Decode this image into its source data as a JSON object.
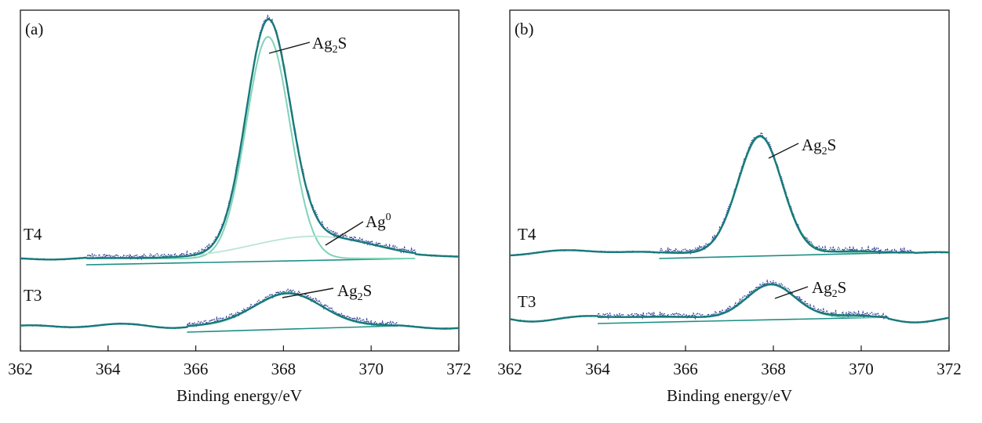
{
  "chart_data": [
    {
      "type": "line",
      "panel_label": "(a)",
      "xlabel": "Binding energy/eV",
      "xlim": [
        362,
        372
      ],
      "xticks": [
        "362",
        "364",
        "366",
        "368",
        "370",
        "372"
      ],
      "yaxis": "offset intensity (no scale shown)",
      "traces": [
        {
          "label": "T4",
          "components": [
            {
              "name": "Ag2S",
              "type": "peak",
              "center": 367.65,
              "width": 0.5,
              "height": 1.0
            },
            {
              "name": "Ag0",
              "type": "peak",
              "center": 368.7,
              "width": 1.4,
              "height": 0.1
            }
          ],
          "annotations": [
            {
              "text": "Ag",
              "sub": "2",
              "rest": "S",
              "x": 367.7
            },
            {
              "text": "Ag",
              "sup": "0",
              "rest": "",
              "x": 369.0
            }
          ]
        },
        {
          "label": "T3",
          "components": [
            {
              "name": "Ag2S",
              "type": "peak",
              "center": 368.1,
              "width": 0.75,
              "height": 0.15
            }
          ],
          "annotations": [
            {
              "text": "Ag",
              "sub": "2",
              "rest": "S",
              "x": 368.3
            }
          ]
        }
      ]
    },
    {
      "type": "line",
      "panel_label": "(b)",
      "xlabel": "Binding energy/eV",
      "xlim": [
        362,
        372
      ],
      "xticks": [
        "362",
        "364",
        "366",
        "368",
        "370",
        "372"
      ],
      "yaxis": "offset intensity (no scale shown)",
      "traces": [
        {
          "label": "T4",
          "components": [
            {
              "name": "Ag2S",
              "type": "peak",
              "center": 367.7,
              "width": 0.5,
              "height": 0.52
            }
          ],
          "annotations": [
            {
              "text": "Ag",
              "sub": "2",
              "rest": "S",
              "x": 367.8
            }
          ]
        },
        {
          "label": "T3",
          "components": [
            {
              "name": "Ag2S",
              "type": "peak",
              "center": 367.95,
              "width": 0.55,
              "height": 0.15
            }
          ],
          "annotations": [
            {
              "text": "Ag",
              "sub": "2",
              "rest": "S",
              "x": 368.1
            }
          ]
        }
      ]
    }
  ]
}
